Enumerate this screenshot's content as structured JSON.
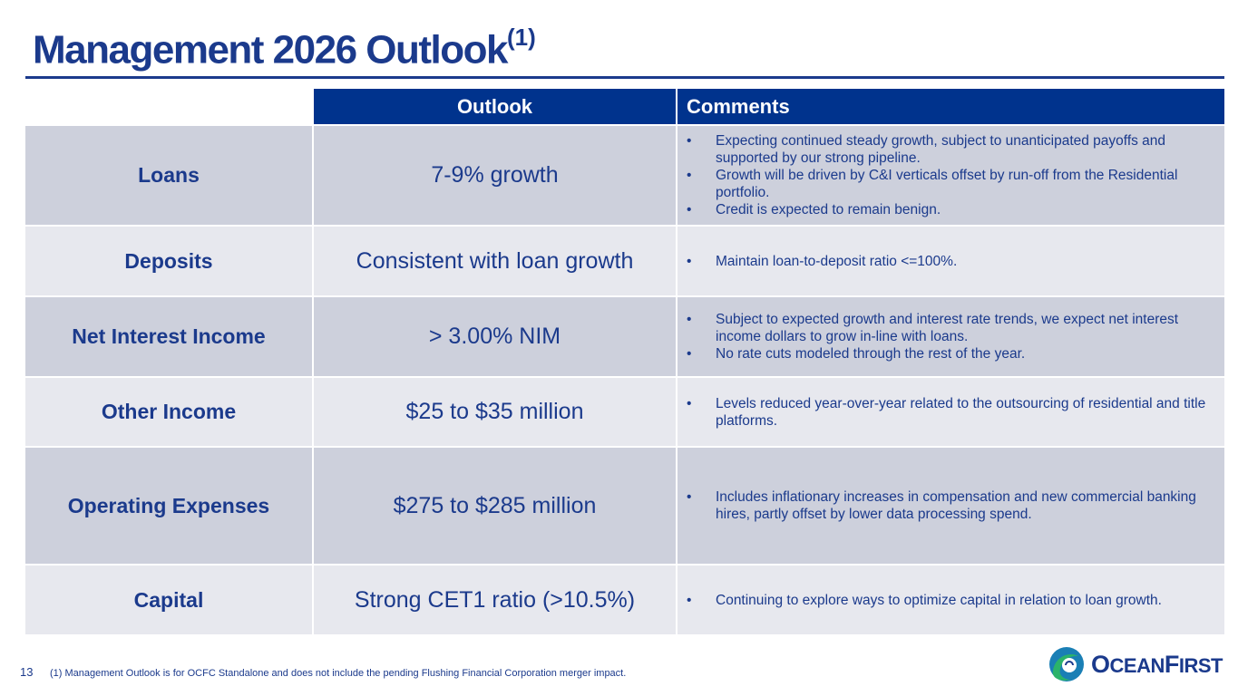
{
  "title": {
    "text": "Management 2026 Outlook",
    "superscript": "(1)"
  },
  "table": {
    "headers": {
      "outlook": "Outlook",
      "comments": "Comments"
    },
    "rows": [
      {
        "category": "Loans",
        "outlook": "7-9% growth",
        "comments": [
          "Expecting continued steady growth, subject to unanticipated payoffs and supported by our strong pipeline.",
          "Growth will be driven by C&I verticals offset by run-off from the Residential portfolio.",
          "Credit is expected to remain benign."
        ]
      },
      {
        "category": "Deposits",
        "outlook": "Consistent with loan growth",
        "comments": [
          "Maintain loan-to-deposit ratio <=100%."
        ]
      },
      {
        "category": "Net Interest Income",
        "outlook": "> 3.00% NIM",
        "comments": [
          "Subject to expected growth and interest rate trends, we expect net interest income dollars to grow in-line with loans.",
          "No rate cuts modeled through the rest of the year."
        ]
      },
      {
        "category": "Other Income",
        "outlook": "$25 to $35 million",
        "comments": [
          "Levels reduced year-over-year related to the outsourcing of residential and title platforms."
        ]
      },
      {
        "category": "Operating Expenses",
        "outlook": "$275 to $285 million",
        "comments": [
          "Includes inflationary increases in compensation and new commercial banking hires, partly offset by lower data processing spend."
        ]
      },
      {
        "category": "Capital",
        "outlook": "Strong CET1 ratio (>10.5%)",
        "comments": [
          "Continuing to explore ways to optimize capital in relation to loan growth."
        ]
      }
    ]
  },
  "footer": {
    "page_number": "13",
    "footnote": "(1)  Management Outlook is for OCFC Standalone and does not include the pending Flushing Financial Corporation merger impact."
  },
  "logo": {
    "text_o": "O",
    "text_cean": "CEAN",
    "text_f": "F",
    "text_irst": "IRST"
  },
  "colors": {
    "brand_navy": "#1b3a8c",
    "header_fill": "#00338d",
    "row_dark": "#cdd0dc",
    "row_light": "#e7e8ee",
    "logo_green": "#2bb36a",
    "logo_teal": "#1a7fb5"
  }
}
